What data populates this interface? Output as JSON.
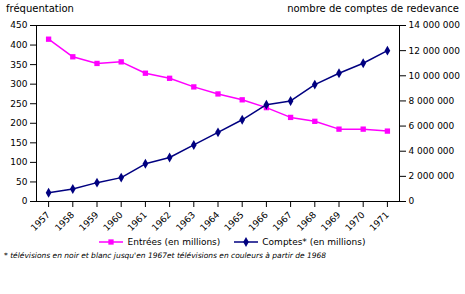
{
  "chart_data": {
    "type": "line",
    "ylabel": "fréquentation",
    "y2label": "nombre de comptes de redevance",
    "footnote": "* télévisions en noir et blanc jusqu'en 1967et télévisions en couleurs à partir de 1968",
    "x": [
      1957,
      1958,
      1959,
      1960,
      1961,
      1962,
      1963,
      1964,
      1965,
      1966,
      1967,
      1968,
      1969,
      1970,
      1971
    ],
    "xlim": [
      1956.5,
      1971.5
    ],
    "xticks": [
      1957,
      1958,
      1959,
      1960,
      1961,
      1962,
      1963,
      1964,
      1965,
      1966,
      1967,
      1968,
      1969,
      1970,
      1971
    ],
    "ylim": [
      0,
      450
    ],
    "yticks": [
      0,
      50,
      100,
      150,
      200,
      250,
      300,
      350,
      400,
      450
    ],
    "y2lim": [
      0,
      14000000
    ],
    "y2ticks": [
      0,
      {
        "value": 2000000,
        "label": "2 000 000"
      },
      {
        "value": 4000000,
        "label": "4 000 000"
      },
      {
        "value": 6000000,
        "label": "6 000 000"
      },
      {
        "value": 8000000,
        "label": "8 000 000"
      },
      {
        "value": 10000000,
        "label": "10 000 000"
      },
      {
        "value": 12000000,
        "label": "12 000 000"
      },
      {
        "value": 14000000,
        "label": "14 000 000"
      }
    ],
    "grid": false,
    "legend": "bottom",
    "series": [
      {
        "name": "Entrées (en millions)",
        "color": "#FF00FF",
        "marker": "square",
        "axis": "y",
        "values": [
          415,
          370,
          353,
          357,
          328,
          315,
          293,
          275,
          260,
          240,
          215,
          205,
          185,
          185,
          180
        ]
      },
      {
        "name": "Comptes* (en millions)",
        "color": "#000080",
        "marker": "diamond",
        "axis": "y2",
        "values": [
          700000,
          1000000,
          1500000,
          1900000,
          3000000,
          3500000,
          4500000,
          5500000,
          6500000,
          7700000,
          8000000,
          9300000,
          10200000,
          11000000,
          12000000
        ]
      }
    ]
  }
}
